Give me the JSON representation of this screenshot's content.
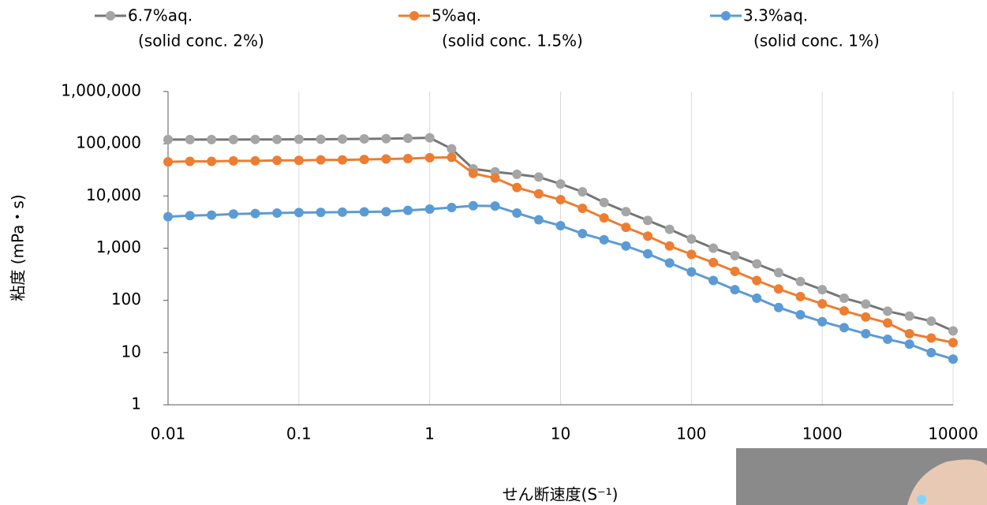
{
  "chart_data": {
    "type": "line",
    "x_label": "せん断速度(S⁻¹)",
    "y_label": "粘度 (mPa・s)",
    "log_x": true,
    "log_y": true,
    "grid": true,
    "x": [
      0.01,
      0.0147,
      0.0215,
      0.0316,
      0.0464,
      0.0681,
      0.1,
      0.147,
      0.215,
      0.316,
      0.464,
      0.681,
      1,
      1.47,
      2.15,
      3.16,
      4.64,
      6.81,
      10,
      14.7,
      21.5,
      31.6,
      46.4,
      68.1,
      100,
      147,
      215,
      316,
      464,
      681,
      1000,
      1470,
      2150,
      3160,
      4640,
      6810,
      10000
    ],
    "xlim": [
      0.01,
      10000
    ],
    "xticks": [
      0.01,
      0.1,
      1,
      10,
      100,
      1000,
      10000
    ],
    "ylim": [
      1,
      1000000
    ],
    "yticks": [
      1,
      10,
      100,
      {
        "value": 1000,
        "label": "1,000"
      },
      {
        "value": 10000,
        "label": "10,000"
      },
      {
        "value": 100000,
        "label": "100,000"
      },
      {
        "value": 1000000,
        "label": "1,000,000"
      }
    ],
    "series": [
      {
        "name": "6.7%aq.",
        "legend_note": "(solid conc. 2%)",
        "color": "#a5a5a5",
        "line_color": "#767676",
        "values": [
          120000,
          120000,
          120000,
          120000,
          121000,
          121000,
          122000,
          122000,
          123000,
          124000,
          125000,
          127000,
          130000,
          80000,
          33000,
          29000,
          26000,
          23000,
          17000,
          12000,
          7500,
          5000,
          3400,
          2300,
          1500,
          1000,
          720,
          500,
          340,
          230,
          160,
          110,
          85,
          62,
          50,
          40,
          26
        ]
      },
      {
        "name": "5%aq.",
        "legend_note": "(solid conc. 1.5%)",
        "color": "#ed7d31",
        "line_color": "#ed7d31",
        "values": [
          45000,
          46000,
          46000,
          47000,
          47000,
          48000,
          48000,
          49000,
          49000,
          50000,
          51000,
          52000,
          54000,
          55000,
          27000,
          22000,
          14500,
          11000,
          8500,
          5800,
          3800,
          2500,
          1700,
          1100,
          760,
          530,
          360,
          240,
          165,
          118,
          86,
          63,
          48,
          37,
          23,
          19,
          15.5
        ]
      },
      {
        "name": "3.3%aq.",
        "legend_note": "(solid conc. 1%)",
        "color": "#5b9bd5",
        "line_color": "#5b9bd5",
        "values": [
          4000,
          4200,
          4300,
          4500,
          4600,
          4700,
          4800,
          4850,
          4900,
          4950,
          5000,
          5300,
          5600,
          6000,
          6500,
          6400,
          4700,
          3500,
          2700,
          1900,
          1450,
          1100,
          780,
          520,
          350,
          240,
          160,
          110,
          73,
          53,
          39,
          30,
          23,
          18,
          14.5,
          10,
          7.5
        ]
      }
    ]
  }
}
